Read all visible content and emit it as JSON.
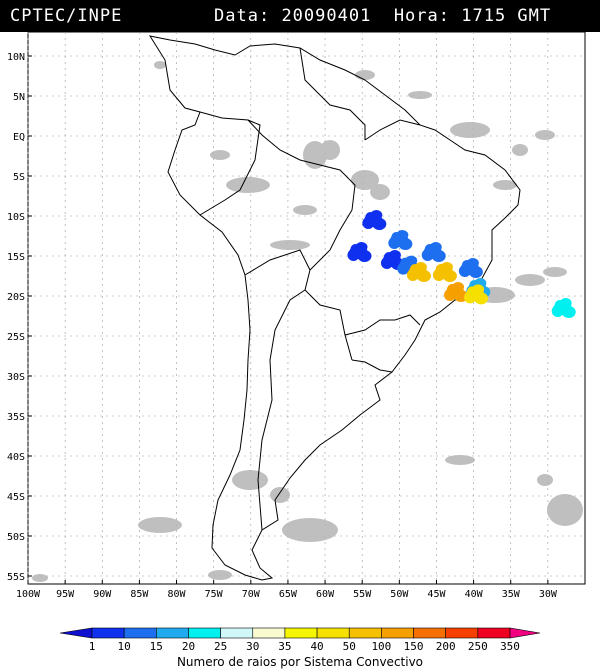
{
  "header": {
    "source": "CPTEC/INPE",
    "data_label": "Data:",
    "date": "20090401",
    "hora_label": "Hora:",
    "time": "1715 GMT"
  },
  "map": {
    "lon_range": [
      -100,
      -25
    ],
    "lat_range": [
      -56,
      13
    ],
    "lat_ticks": [
      {
        "value": 10,
        "label": "10N"
      },
      {
        "value": 5,
        "label": "5N"
      },
      {
        "value": 0,
        "label": "EQ"
      },
      {
        "value": -5,
        "label": "5S"
      },
      {
        "value": -10,
        "label": "10S"
      },
      {
        "value": -15,
        "label": "15S"
      },
      {
        "value": -20,
        "label": "20S"
      },
      {
        "value": -25,
        "label": "25S"
      },
      {
        "value": -30,
        "label": "30S"
      },
      {
        "value": -35,
        "label": "35S"
      },
      {
        "value": -40,
        "label": "40S"
      },
      {
        "value": -45,
        "label": "45S"
      },
      {
        "value": -50,
        "label": "50S"
      },
      {
        "value": -55,
        "label": "55S"
      }
    ],
    "lon_ticks": [
      {
        "value": -100,
        "label": "100W"
      },
      {
        "value": -95,
        "label": "95W"
      },
      {
        "value": -90,
        "label": "90W"
      },
      {
        "value": -85,
        "label": "85W"
      },
      {
        "value": -80,
        "label": "80W"
      },
      {
        "value": -75,
        "label": "75W"
      },
      {
        "value": -70,
        "label": "70W"
      },
      {
        "value": -65,
        "label": "65W"
      },
      {
        "value": -60,
        "label": "60W"
      },
      {
        "value": -55,
        "label": "55W"
      },
      {
        "value": -50,
        "label": "50W"
      },
      {
        "value": -45,
        "label": "45W"
      },
      {
        "value": -40,
        "label": "40W"
      },
      {
        "value": -35,
        "label": "35W"
      },
      {
        "value": -30,
        "label": "30W"
      }
    ],
    "grid": true,
    "colors": {
      "coast": "#000000",
      "grid": "#9a9a9a",
      "cloud": "#b4b4b4"
    },
    "convective_systems": [
      {
        "lon": -53.5,
        "lat": -10.5,
        "category": "10",
        "color": "#1030f0"
      },
      {
        "lon": -55.5,
        "lat": -14.5,
        "category": "10",
        "color": "#1030f0"
      },
      {
        "lon": -51.0,
        "lat": -15.5,
        "category": "10",
        "color": "#1030f0"
      },
      {
        "lon": -50.0,
        "lat": -13.0,
        "category": "15",
        "color": "#1e6ef0"
      },
      {
        "lon": -48.8,
        "lat": -16.2,
        "category": "15",
        "color": "#1e6ef0"
      },
      {
        "lon": -45.5,
        "lat": -14.5,
        "category": "15",
        "color": "#1e6ef0"
      },
      {
        "lon": -40.5,
        "lat": -16.5,
        "category": "15",
        "color": "#1e6ef0"
      },
      {
        "lon": -39.5,
        "lat": -19.0,
        "category": "20",
        "color": "#20aaf0"
      },
      {
        "lon": -47.5,
        "lat": -17.0,
        "category": "100",
        "color": "#f5c000"
      },
      {
        "lon": -44.0,
        "lat": -17.0,
        "category": "100",
        "color": "#f5c000"
      },
      {
        "lon": -42.5,
        "lat": -19.5,
        "category": "150",
        "color": "#f5a000"
      },
      {
        "lon": -39.8,
        "lat": -19.8,
        "category": "50",
        "color": "#f5e000"
      },
      {
        "lon": -28.0,
        "lat": -21.5,
        "category": "25",
        "color": "#00f0f0"
      }
    ]
  },
  "legend": {
    "labels": [
      "1",
      "10",
      "15",
      "20",
      "25",
      "30",
      "35",
      "40",
      "50",
      "100",
      "150",
      "200",
      "250",
      "350"
    ],
    "colors": [
      "#1010d0",
      "#1030f0",
      "#1e6ef0",
      "#20aaf0",
      "#00f0f0",
      "#d0f8f8",
      "#fafad0",
      "#f5f500",
      "#f5e000",
      "#f5c000",
      "#f5a000",
      "#f57000",
      "#f54000",
      "#f00020",
      "#f00080"
    ],
    "caption": "Numero de raios por Sistema Convectivo"
  }
}
